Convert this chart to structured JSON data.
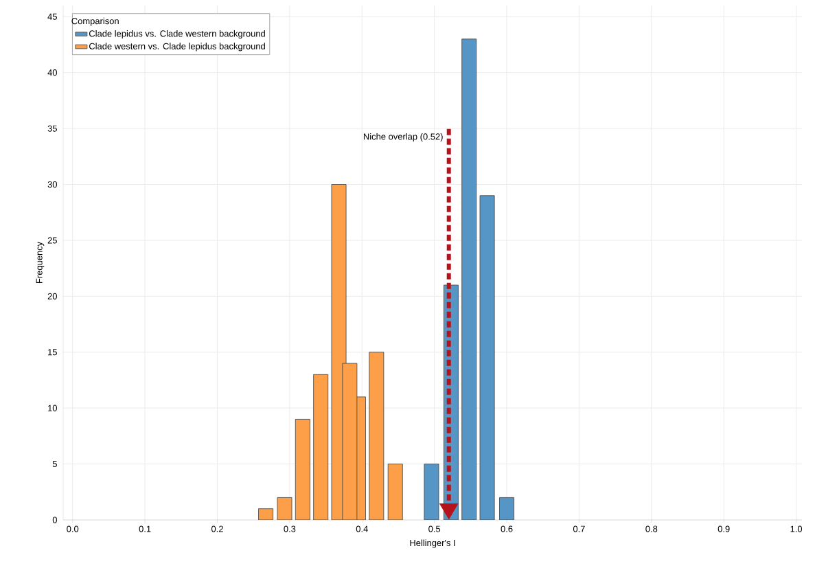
{
  "chart_data": {
    "type": "bar",
    "xlabel": "Hellinger's I",
    "ylabel": "Frequency",
    "legend_title": "Comparison",
    "series": [
      {
        "name": "Clade lepidus vs. Clade western background",
        "color": "#5596c6",
        "x": [
          0.496,
          0.523,
          0.548,
          0.573,
          0.6
        ],
        "values": [
          5,
          21,
          43,
          29,
          2
        ]
      },
      {
        "name": "Clade western vs. Clade lepidus background",
        "color": "#fd9f48",
        "x": [
          0.267,
          0.293,
          0.318,
          0.343,
          0.368,
          0.395,
          0.42,
          0.446
        ],
        "values": [
          1,
          2,
          9,
          13,
          30,
          11,
          15,
          5
        ]
      },
      {
        "color": "#fd9f48",
        "x": [
          0.383
        ],
        "values": [
          14
        ]
      }
    ],
    "xlim": [
      -0.013,
      1.008
    ],
    "ylim": [
      0,
      46
    ],
    "xticks": [
      {
        "value": 0,
        "label": "0.0"
      },
      {
        "value": 0.1,
        "label": "0.1"
      },
      {
        "value": 0.2,
        "label": "0.2"
      },
      {
        "value": 0.3,
        "label": "0.3"
      },
      {
        "value": 0.4,
        "label": "0.4"
      },
      {
        "value": 0.5,
        "label": "0.5"
      },
      {
        "value": 0.6,
        "label": "0.6"
      },
      {
        "value": 0.7,
        "label": "0.7"
      },
      {
        "value": 0.8,
        "label": "0.8"
      },
      {
        "value": 0.9,
        "label": "0.9"
      },
      {
        "value": 1,
        "label": "1.0"
      }
    ],
    "yticks": [
      0,
      5,
      10,
      15,
      20,
      25,
      30,
      35,
      40,
      45
    ],
    "ref_lines": [
      {
        "axis": "x",
        "value": 0.52,
        "label": "Niche overlap (0.52)",
        "color": "#b5121b",
        "line_style": "dashed"
      }
    ],
    "grid": true,
    "legend": "top left"
  }
}
